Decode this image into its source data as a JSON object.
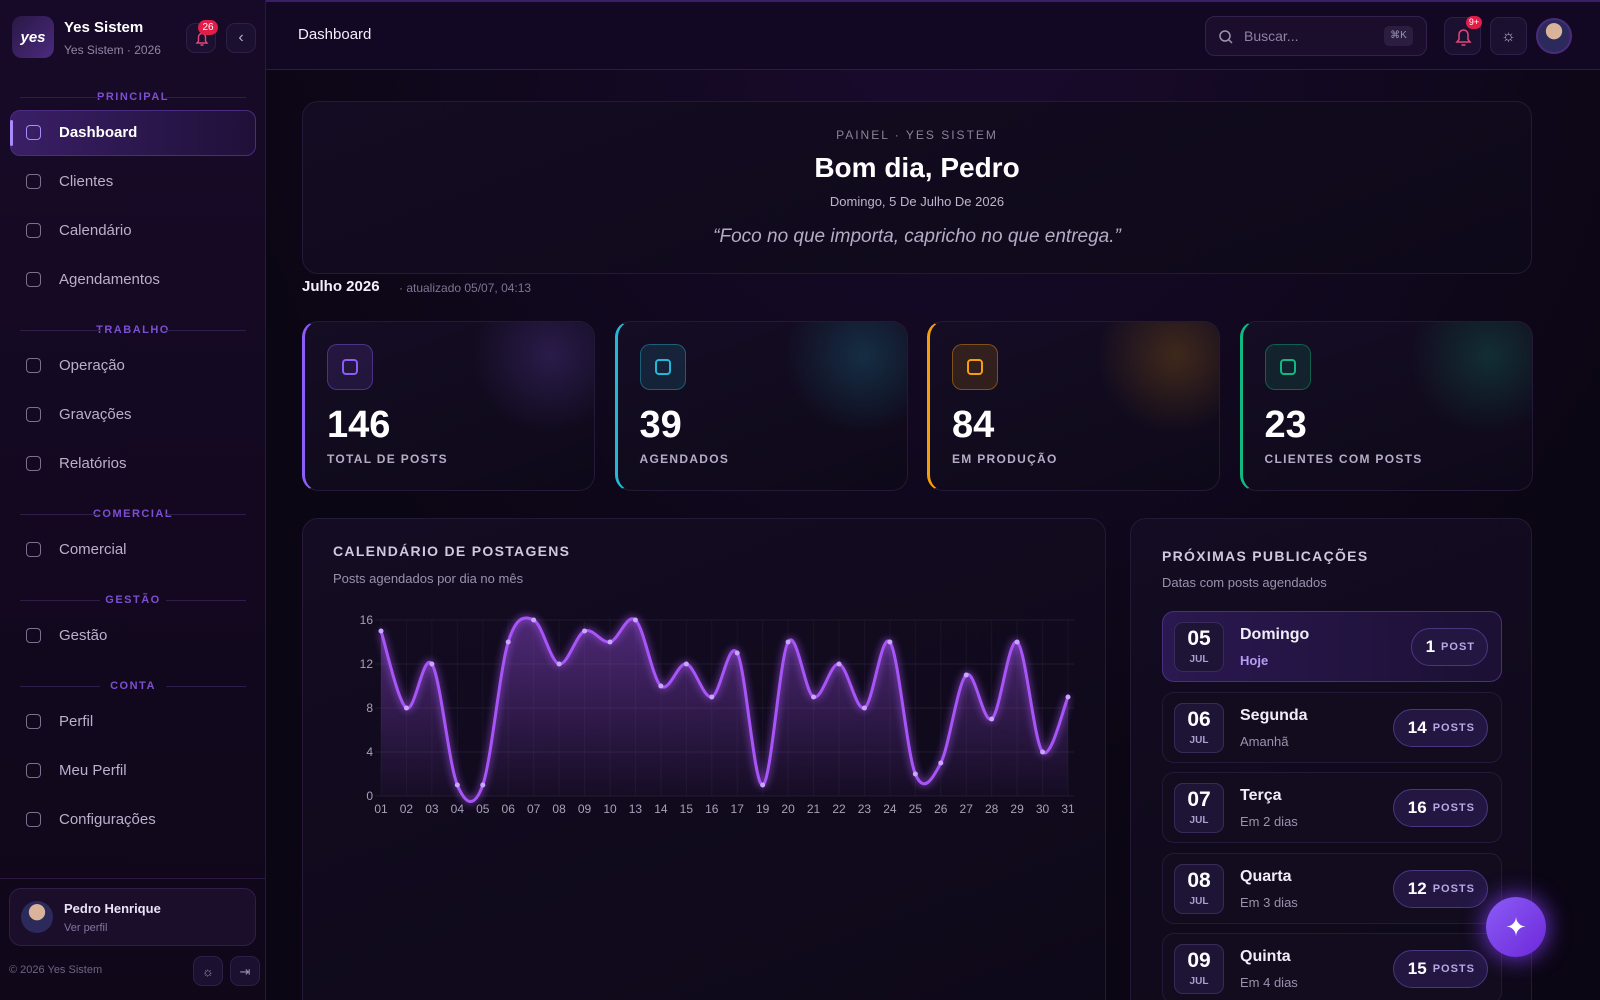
{
  "sidebar": {
    "brand": {
      "logo": "yes",
      "name": "Yes Sistem",
      "sub": "Yes Sistem · 2026",
      "badge": "26"
    },
    "sections": [
      {
        "title": "PRINCIPAL",
        "items": [
          "Dashboard",
          "Clientes",
          "Calendário",
          "Agendamentos"
        ]
      },
      {
        "title": "TRABALHO",
        "items": [
          "Operação",
          "Gravações",
          "Relatórios"
        ]
      },
      {
        "title": "COMERCIAL",
        "items": [
          "Comercial"
        ]
      },
      {
        "title": "GESTÃO",
        "items": [
          "Gestão"
        ]
      },
      {
        "title": "CONTA",
        "items": [
          "Perfil",
          "Meu Perfil",
          "Configurações"
        ]
      }
    ],
    "user": {
      "name": "Pedro Henrique",
      "link": "Ver perfil"
    },
    "footer": "© 2026 Yes Sistem"
  },
  "header": {
    "title": "Dashboard",
    "search": "Buscar...",
    "shortcut": "⌘K",
    "badge": "9+"
  },
  "hero": {
    "eyebrow": "PAINEL · YES SISTEM",
    "greeting": "Bom dia, Pedro",
    "date": "Domingo, 5 De Julho De 2026",
    "quote": "“Foco no que importa, capricho no que entrega.”"
  },
  "period": {
    "month": "Julho 2026",
    "updated": "· atualizado 05/07, 04:13"
  },
  "stats": [
    {
      "value": 146,
      "label": "TOTAL DE POSTS",
      "color": "#8b5cf6"
    },
    {
      "value": 39,
      "label": "AGENDADOS",
      "color": "#22b8d6"
    },
    {
      "value": 84,
      "label": "EM PRODUÇÃO",
      "color": "#f59e0b"
    },
    {
      "value": 23,
      "label": "CLIENTES COM POSTS",
      "color": "#10b981"
    }
  ],
  "chart_data": {
    "type": "line",
    "title": "CALENDÁRIO DE POSTAGENS",
    "subtitle": "Posts agendados por dia no mês",
    "categories": [
      "01",
      "02",
      "03",
      "04",
      "05",
      "06",
      "07",
      "08",
      "09",
      "10",
      "13",
      "14",
      "15",
      "16",
      "17",
      "19",
      "20",
      "21",
      "22",
      "23",
      "24",
      "25",
      "26",
      "27",
      "28",
      "29",
      "30",
      "31"
    ],
    "values": [
      15,
      8,
      12,
      1,
      1,
      14,
      16,
      12,
      15,
      14,
      16,
      10,
      12,
      9,
      13,
      1,
      14,
      9,
      12,
      8,
      14,
      2,
      3,
      11,
      7,
      14,
      4,
      9
    ],
    "color": "#a855f7",
    "ylim": [
      0,
      16
    ],
    "yticks": [
      0,
      4,
      8,
      12,
      16
    ]
  },
  "upcoming": {
    "title": "PRÓXIMAS PUBLICAÇÕES",
    "subtitle": "Datas com posts agendados",
    "items": [
      {
        "day": "05",
        "month": "JUL",
        "weekday": "Domingo",
        "relative": "Hoje",
        "count": 1,
        "unit": "POST"
      },
      {
        "day": "06",
        "month": "JUL",
        "weekday": "Segunda",
        "relative": "Amanhã",
        "count": 14,
        "unit": "POSTS"
      },
      {
        "day": "07",
        "month": "JUL",
        "weekday": "Terça",
        "relative": "Em 2 dias",
        "count": 16,
        "unit": "POSTS"
      },
      {
        "day": "08",
        "month": "JUL",
        "weekday": "Quarta",
        "relative": "Em 3 dias",
        "count": 12,
        "unit": "POSTS"
      },
      {
        "day": "09",
        "month": "JUL",
        "weekday": "Quinta",
        "relative": "Em 4 dias",
        "count": 15,
        "unit": "POSTS"
      }
    ]
  }
}
